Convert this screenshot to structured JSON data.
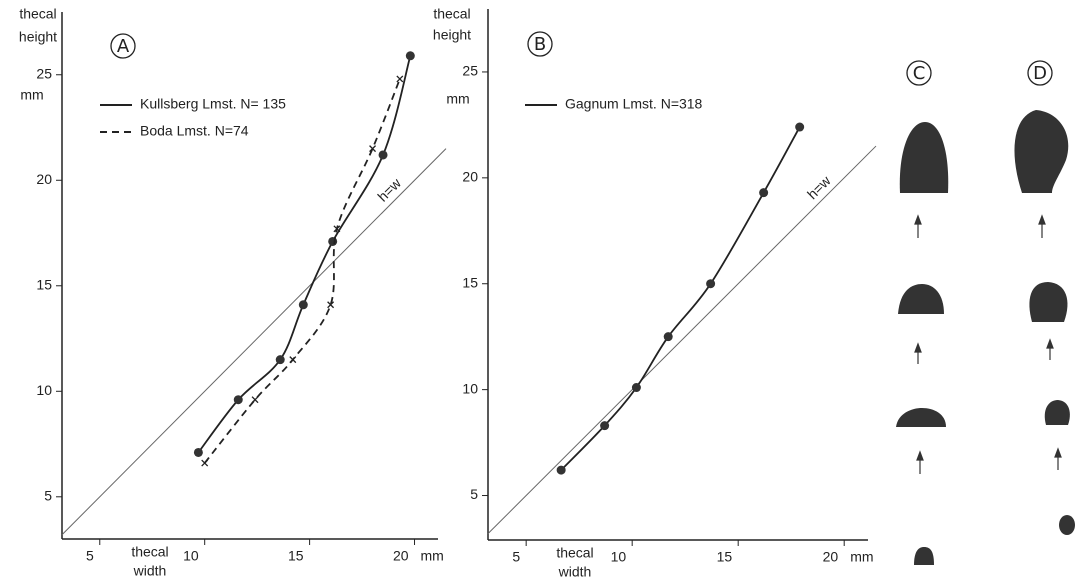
{
  "chart_data": [
    {
      "type": "scatter",
      "panel": "A",
      "y_label": [
        "thecal",
        "height"
      ],
      "y_unit": "mm",
      "x_label": [
        "thecal",
        "width"
      ],
      "x_unit": "mm",
      "reference_line_label": "h=w",
      "xlim": [
        3.2,
        21.5
      ],
      "ylim": [
        3,
        27.5
      ],
      "xticks": [
        5,
        10,
        15,
        20
      ],
      "yticks": [
        5,
        10,
        15,
        20,
        25
      ],
      "series": [
        {
          "name": "Kullsberg Lmst. N= 135",
          "color": "#222",
          "marker": "dot",
          "dash": "solid",
          "x": [
            9.7,
            11.6,
            13.6,
            14.7,
            16.1,
            18.5,
            19.8
          ],
          "values": [
            7.1,
            9.6,
            11.5,
            14.1,
            17.1,
            21.2,
            25.9
          ]
        },
        {
          "name": "Boda Lmst. N=74",
          "color": "#222",
          "marker": "x",
          "dash": "dashed",
          "x": [
            10.0,
            12.4,
            14.2,
            16.0,
            16.3,
            18.0,
            19.3
          ],
          "values": [
            6.6,
            9.6,
            11.5,
            14.1,
            17.7,
            21.5,
            24.8
          ]
        }
      ]
    },
    {
      "type": "scatter",
      "panel": "B",
      "y_label": [
        "thecal",
        "height"
      ],
      "y_unit": "mm",
      "x_label": [
        "thecal",
        "width"
      ],
      "x_unit": "mm",
      "reference_line_label": "h=w",
      "xlim": [
        3.2,
        21.5
      ],
      "ylim": [
        2.9,
        27.5
      ],
      "xticks": [
        5,
        10,
        15,
        20
      ],
      "yticks": [
        5,
        10,
        15,
        20,
        25
      ],
      "series": [
        {
          "name": "Gagnum Lmst. N=318",
          "color": "#222",
          "marker": "dot",
          "dash": "solid",
          "x": [
            6.65,
            8.7,
            10.2,
            11.7,
            13.7,
            16.2,
            17.9
          ],
          "values": [
            6.2,
            8.3,
            10.1,
            12.5,
            15.0,
            19.3,
            22.4
          ]
        }
      ]
    }
  ],
  "figures": [
    {
      "label": "C"
    },
    {
      "label": "D"
    }
  ]
}
